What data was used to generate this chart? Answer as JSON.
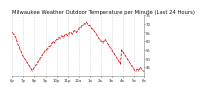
{
  "title": "Milwaukee Weather Outdoor Temperature per Minute (Last 24 Hours)",
  "background_color": "#ffffff",
  "line_color": "#dd0000",
  "grid_color": "#bbbbbb",
  "y_label_color": "#333333",
  "x_label_color": "#333333",
  "ylim": [
    40,
    75
  ],
  "yticks": [
    45,
    50,
    55,
    60,
    65,
    70,
    75
  ],
  "num_points": 120,
  "y_values": [
    65,
    64,
    63,
    62,
    60,
    58,
    57,
    55,
    54,
    52,
    51,
    50,
    49,
    48,
    47,
    46,
    45,
    44,
    43,
    44,
    45,
    46,
    47,
    48,
    49,
    50,
    51,
    52,
    53,
    54,
    55,
    55,
    56,
    57,
    57,
    58,
    59,
    60,
    59,
    60,
    61,
    61,
    62,
    62,
    63,
    63,
    62,
    63,
    64,
    64,
    63,
    64,
    65,
    65,
    64,
    65,
    66,
    66,
    65,
    66,
    67,
    68,
    68,
    69,
    69,
    70,
    70,
    71,
    70,
    69,
    69,
    68,
    67,
    67,
    66,
    65,
    64,
    63,
    62,
    61,
    60,
    60,
    59,
    60,
    61,
    60,
    59,
    58,
    57,
    56,
    55,
    54,
    53,
    52,
    51,
    50,
    49,
    48,
    47,
    55,
    54,
    53,
    52,
    51,
    50,
    49,
    48,
    47,
    46,
    45,
    44,
    43,
    43,
    44,
    43,
    44,
    45,
    44,
    43,
    43
  ],
  "dpi": 100,
  "title_fontsize": 3.8,
  "tick_fontsize": 2.8,
  "line_width": 0.55,
  "marker_size": 0.7,
  "x_tick_positions": [
    0,
    10,
    20,
    30,
    40,
    50,
    60,
    70,
    80,
    90,
    100,
    110,
    119
  ],
  "x_tick_labels": [
    "6p",
    "7p",
    "8p",
    "9p",
    "10p",
    "11p",
    "12a",
    "1a",
    "2a",
    "3a",
    "4a",
    "5a",
    "6a"
  ]
}
